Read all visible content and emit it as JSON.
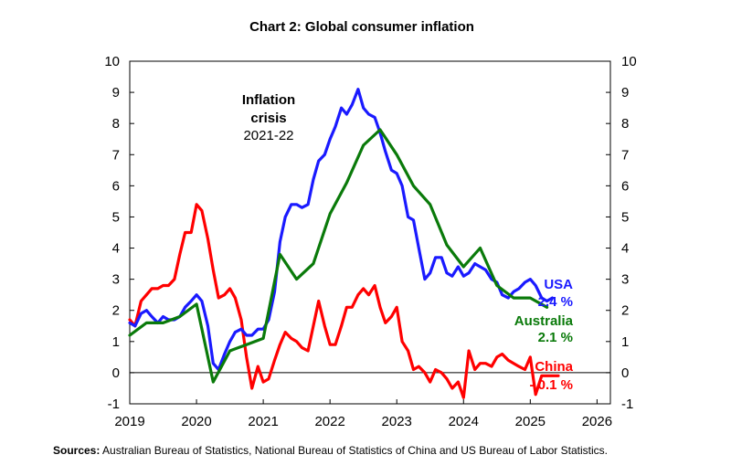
{
  "chart_data": {
    "type": "line",
    "title": "Chart 2: Global consumer inflation",
    "x_ticks": [
      "2019",
      "2020",
      "2021",
      "2022",
      "2023",
      "2024",
      "2025",
      "2026"
    ],
    "xlim": [
      2019,
      2026
    ],
    "ylim": [
      -1,
      10
    ],
    "y_ticks": [
      -1,
      0,
      1,
      2,
      3,
      4,
      5,
      6,
      7,
      8,
      9,
      10
    ],
    "y_axis_sides": "left and right",
    "grid": false,
    "colors": {
      "USA": "#1a1aff",
      "Australia": "#0a7a0a",
      "China": "#ff0000"
    },
    "series": [
      {
        "name": "USA",
        "points": [
          [
            2019.0,
            1.6
          ],
          [
            2019.08,
            1.5
          ],
          [
            2019.17,
            1.9
          ],
          [
            2019.25,
            2.0
          ],
          [
            2019.33,
            1.8
          ],
          [
            2019.42,
            1.6
          ],
          [
            2019.5,
            1.8
          ],
          [
            2019.58,
            1.7
          ],
          [
            2019.67,
            1.7
          ],
          [
            2019.75,
            1.8
          ],
          [
            2019.83,
            2.1
          ],
          [
            2019.92,
            2.3
          ],
          [
            2020.0,
            2.5
          ],
          [
            2020.08,
            2.3
          ],
          [
            2020.17,
            1.5
          ],
          [
            2020.25,
            0.3
          ],
          [
            2020.33,
            0.1
          ],
          [
            2020.42,
            0.6
          ],
          [
            2020.5,
            1.0
          ],
          [
            2020.58,
            1.3
          ],
          [
            2020.67,
            1.4
          ],
          [
            2020.75,
            1.2
          ],
          [
            2020.83,
            1.2
          ],
          [
            2020.92,
            1.4
          ],
          [
            2021.0,
            1.4
          ],
          [
            2021.08,
            1.7
          ],
          [
            2021.17,
            2.6
          ],
          [
            2021.25,
            4.2
          ],
          [
            2021.33,
            5.0
          ],
          [
            2021.42,
            5.4
          ],
          [
            2021.5,
            5.4
          ],
          [
            2021.58,
            5.3
          ],
          [
            2021.67,
            5.4
          ],
          [
            2021.75,
            6.2
          ],
          [
            2021.83,
            6.8
          ],
          [
            2021.92,
            7.0
          ],
          [
            2022.0,
            7.5
          ],
          [
            2022.08,
            7.9
          ],
          [
            2022.17,
            8.5
          ],
          [
            2022.25,
            8.3
          ],
          [
            2022.33,
            8.6
          ],
          [
            2022.42,
            9.1
          ],
          [
            2022.5,
            8.5
          ],
          [
            2022.58,
            8.3
          ],
          [
            2022.67,
            8.2
          ],
          [
            2022.75,
            7.7
          ],
          [
            2022.83,
            7.1
          ],
          [
            2022.92,
            6.5
          ],
          [
            2023.0,
            6.4
          ],
          [
            2023.08,
            6.0
          ],
          [
            2023.17,
            5.0
          ],
          [
            2023.25,
            4.9
          ],
          [
            2023.33,
            4.0
          ],
          [
            2023.42,
            3.0
          ],
          [
            2023.5,
            3.2
          ],
          [
            2023.58,
            3.7
          ],
          [
            2023.67,
            3.7
          ],
          [
            2023.75,
            3.2
          ],
          [
            2023.83,
            3.1
          ],
          [
            2023.92,
            3.4
          ],
          [
            2024.0,
            3.1
          ],
          [
            2024.08,
            3.2
          ],
          [
            2024.17,
            3.5
          ],
          [
            2024.25,
            3.4
          ],
          [
            2024.33,
            3.3
          ],
          [
            2024.42,
            3.0
          ],
          [
            2024.5,
            2.9
          ],
          [
            2024.58,
            2.5
          ],
          [
            2024.67,
            2.4
          ],
          [
            2024.75,
            2.6
          ],
          [
            2024.83,
            2.7
          ],
          [
            2024.92,
            2.9
          ],
          [
            2025.0,
            3.0
          ],
          [
            2025.08,
            2.8
          ],
          [
            2025.17,
            2.4
          ],
          [
            2025.25,
            2.3
          ],
          [
            2025.33,
            2.4
          ]
        ]
      },
      {
        "name": "Australia",
        "points": [
          [
            2019.0,
            1.2
          ],
          [
            2019.25,
            1.6
          ],
          [
            2019.5,
            1.6
          ],
          [
            2019.75,
            1.8
          ],
          [
            2020.0,
            2.2
          ],
          [
            2020.25,
            -0.3
          ],
          [
            2020.5,
            0.7
          ],
          [
            2020.75,
            0.9
          ],
          [
            2021.0,
            1.1
          ],
          [
            2021.25,
            3.8
          ],
          [
            2021.5,
            3.0
          ],
          [
            2021.75,
            3.5
          ],
          [
            2022.0,
            5.1
          ],
          [
            2022.25,
            6.1
          ],
          [
            2022.5,
            7.3
          ],
          [
            2022.75,
            7.8
          ],
          [
            2023.0,
            7.0
          ],
          [
            2023.25,
            6.0
          ],
          [
            2023.5,
            5.4
          ],
          [
            2023.75,
            4.1
          ],
          [
            2024.0,
            3.4
          ],
          [
            2024.25,
            4.0
          ],
          [
            2024.5,
            2.8
          ],
          [
            2024.75,
            2.4
          ],
          [
            2025.0,
            2.4
          ],
          [
            2025.25,
            2.1
          ]
        ]
      },
      {
        "name": "China",
        "points": [
          [
            2019.0,
            1.7
          ],
          [
            2019.08,
            1.5
          ],
          [
            2019.17,
            2.3
          ],
          [
            2019.25,
            2.5
          ],
          [
            2019.33,
            2.7
          ],
          [
            2019.42,
            2.7
          ],
          [
            2019.5,
            2.8
          ],
          [
            2019.58,
            2.8
          ],
          [
            2019.67,
            3.0
          ],
          [
            2019.75,
            3.8
          ],
          [
            2019.83,
            4.5
          ],
          [
            2019.92,
            4.5
          ],
          [
            2020.0,
            5.4
          ],
          [
            2020.08,
            5.2
          ],
          [
            2020.17,
            4.3
          ],
          [
            2020.25,
            3.3
          ],
          [
            2020.33,
            2.4
          ],
          [
            2020.42,
            2.5
          ],
          [
            2020.5,
            2.7
          ],
          [
            2020.58,
            2.4
          ],
          [
            2020.67,
            1.7
          ],
          [
            2020.75,
            0.5
          ],
          [
            2020.83,
            -0.5
          ],
          [
            2020.92,
            0.2
          ],
          [
            2021.0,
            -0.3
          ],
          [
            2021.08,
            -0.2
          ],
          [
            2021.17,
            0.4
          ],
          [
            2021.25,
            0.9
          ],
          [
            2021.33,
            1.3
          ],
          [
            2021.42,
            1.1
          ],
          [
            2021.5,
            1.0
          ],
          [
            2021.58,
            0.8
          ],
          [
            2021.67,
            0.7
          ],
          [
            2021.75,
            1.5
          ],
          [
            2021.83,
            2.3
          ],
          [
            2021.92,
            1.5
          ],
          [
            2022.0,
            0.9
          ],
          [
            2022.08,
            0.9
          ],
          [
            2022.17,
            1.5
          ],
          [
            2022.25,
            2.1
          ],
          [
            2022.33,
            2.1
          ],
          [
            2022.42,
            2.5
          ],
          [
            2022.5,
            2.7
          ],
          [
            2022.58,
            2.5
          ],
          [
            2022.67,
            2.8
          ],
          [
            2022.75,
            2.1
          ],
          [
            2022.83,
            1.6
          ],
          [
            2022.92,
            1.8
          ],
          [
            2023.0,
            2.1
          ],
          [
            2023.08,
            1.0
          ],
          [
            2023.17,
            0.7
          ],
          [
            2023.25,
            0.1
          ],
          [
            2023.33,
            0.2
          ],
          [
            2023.42,
            0.0
          ],
          [
            2023.5,
            -0.3
          ],
          [
            2023.58,
            0.1
          ],
          [
            2023.67,
            0.0
          ],
          [
            2023.75,
            -0.2
          ],
          [
            2023.83,
            -0.5
          ],
          [
            2023.92,
            -0.3
          ],
          [
            2024.0,
            -0.8
          ],
          [
            2024.08,
            0.7
          ],
          [
            2024.17,
            0.1
          ],
          [
            2024.25,
            0.3
          ],
          [
            2024.33,
            0.3
          ],
          [
            2024.42,
            0.2
          ],
          [
            2024.5,
            0.5
          ],
          [
            2024.58,
            0.6
          ],
          [
            2024.67,
            0.4
          ],
          [
            2024.75,
            0.3
          ],
          [
            2024.83,
            0.2
          ],
          [
            2024.92,
            0.1
          ],
          [
            2025.0,
            0.5
          ],
          [
            2025.08,
            -0.7
          ],
          [
            2025.17,
            -0.1
          ],
          [
            2025.25,
            -0.1
          ],
          [
            2025.33,
            -0.1
          ],
          [
            2025.42,
            -0.1
          ]
        ]
      }
    ],
    "annotations": {
      "crisis": [
        "Inflation",
        "crisis",
        "2021-22"
      ],
      "usa": [
        "USA",
        "2.4 %"
      ],
      "australia": [
        "Australia",
        "2.1 %"
      ],
      "china": [
        "China",
        "- 0.1 %"
      ]
    }
  },
  "source": {
    "label": "Sources:",
    "text": " Australian Bureau of Statistics, National Bureau of Statistics of China and US Bureau of Labor Statistics."
  }
}
